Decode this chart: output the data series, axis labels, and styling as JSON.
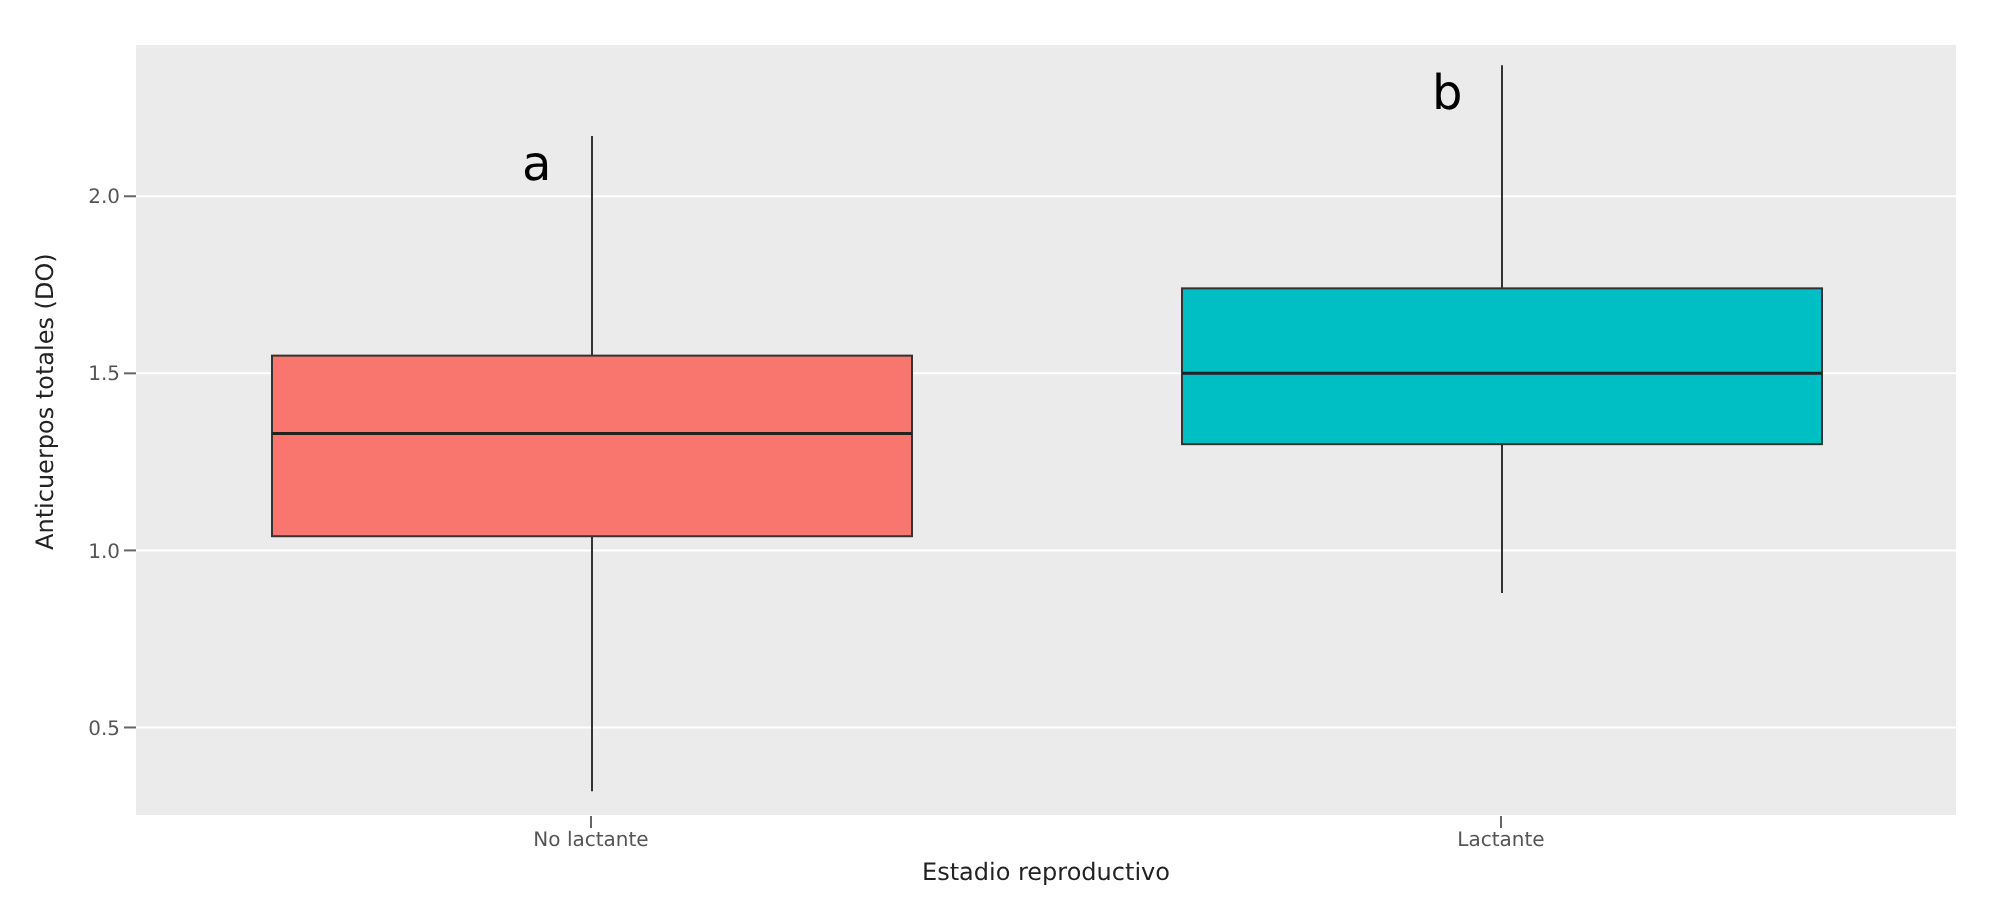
{
  "chart_data": {
    "type": "box",
    "xlabel": "Estadio reproductivo",
    "ylabel": "Anticuerpos totales (DO)",
    "categories": [
      "No lactante",
      "Lactante"
    ],
    "colors": [
      "#f8766d",
      "#00bfc4"
    ],
    "boxes": [
      {
        "low": 0.32,
        "q1": 1.04,
        "median": 1.33,
        "q3": 1.55,
        "high": 2.17
      },
      {
        "low": 0.88,
        "q1": 1.3,
        "median": 1.5,
        "q3": 1.74,
        "high": 2.37
      }
    ],
    "ylim": [
      0.25,
      2.43
    ],
    "yticks": [
      0.5,
      {
        "value": 1,
        "label": "1.0"
      },
      1.5,
      {
        "value": 2,
        "label": "2.0"
      }
    ],
    "grid": "y",
    "annotations": [
      "a",
      "b"
    ]
  }
}
